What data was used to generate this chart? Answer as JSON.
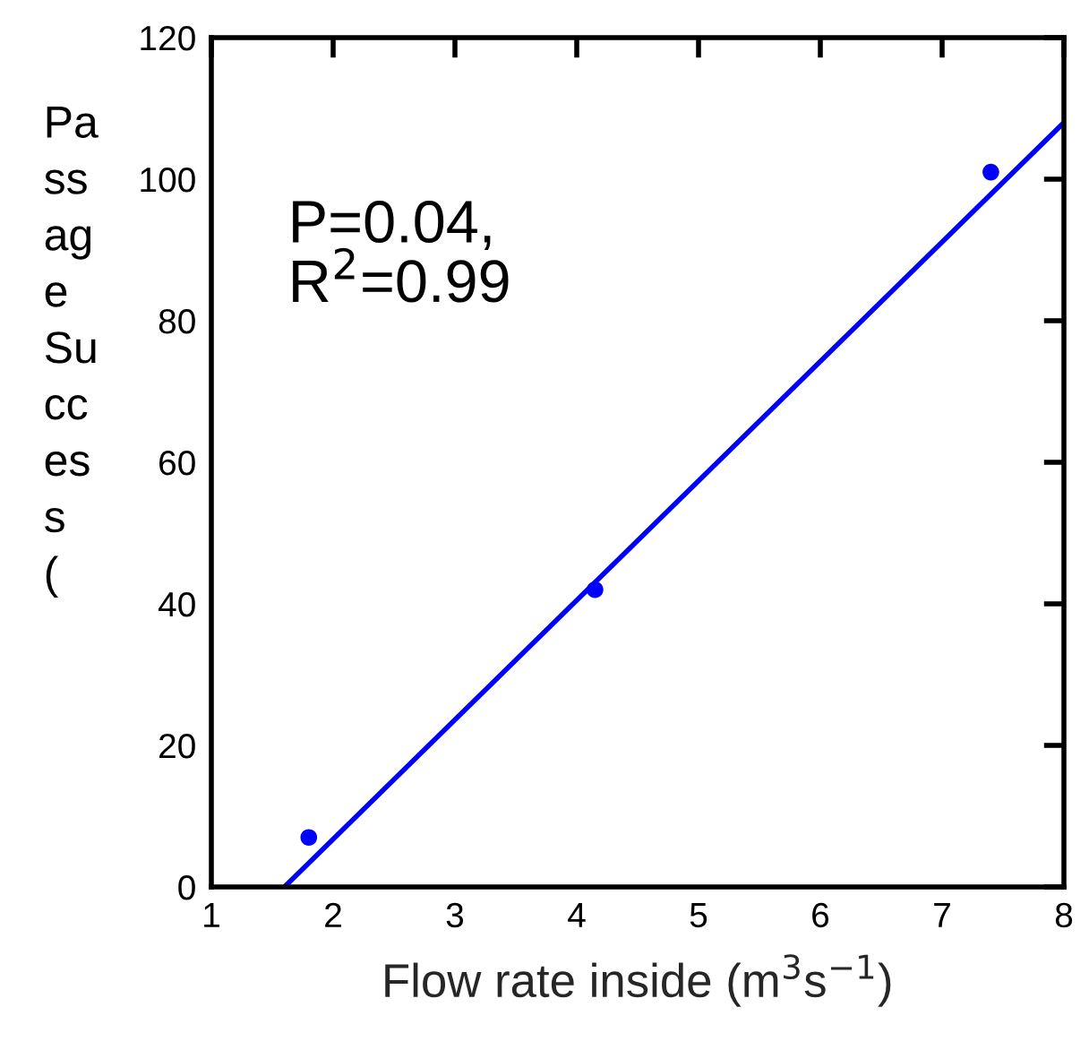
{
  "chart_data": {
    "type": "scatter",
    "xlabel": "Flow rate inside (m$^{3}$s$^{−1}$)",
    "ylabel": "Passage Success (",
    "series": [
      {
        "color": "#0000ff",
        "x": [
          1.8,
          4.15,
          7.4
        ],
        "values": [
          7,
          42,
          101
        ]
      },
      {
        "type": "line",
        "color": "#0000ff",
        "x": [
          1.6,
          8
        ],
        "values": [
          0,
          108
        ]
      }
    ],
    "xlim": [
      1,
      8
    ],
    "xticks": [
      1,
      2,
      3,
      4,
      5,
      6,
      7,
      8
    ],
    "ylim": [
      0,
      120
    ],
    "yticks": [
      0,
      20,
      40,
      60,
      80,
      100,
      120
    ],
    "grid": false,
    "legend": false,
    "annotations": [
      "P=0.04,\nR$^{2}$=0.99"
    ]
  }
}
